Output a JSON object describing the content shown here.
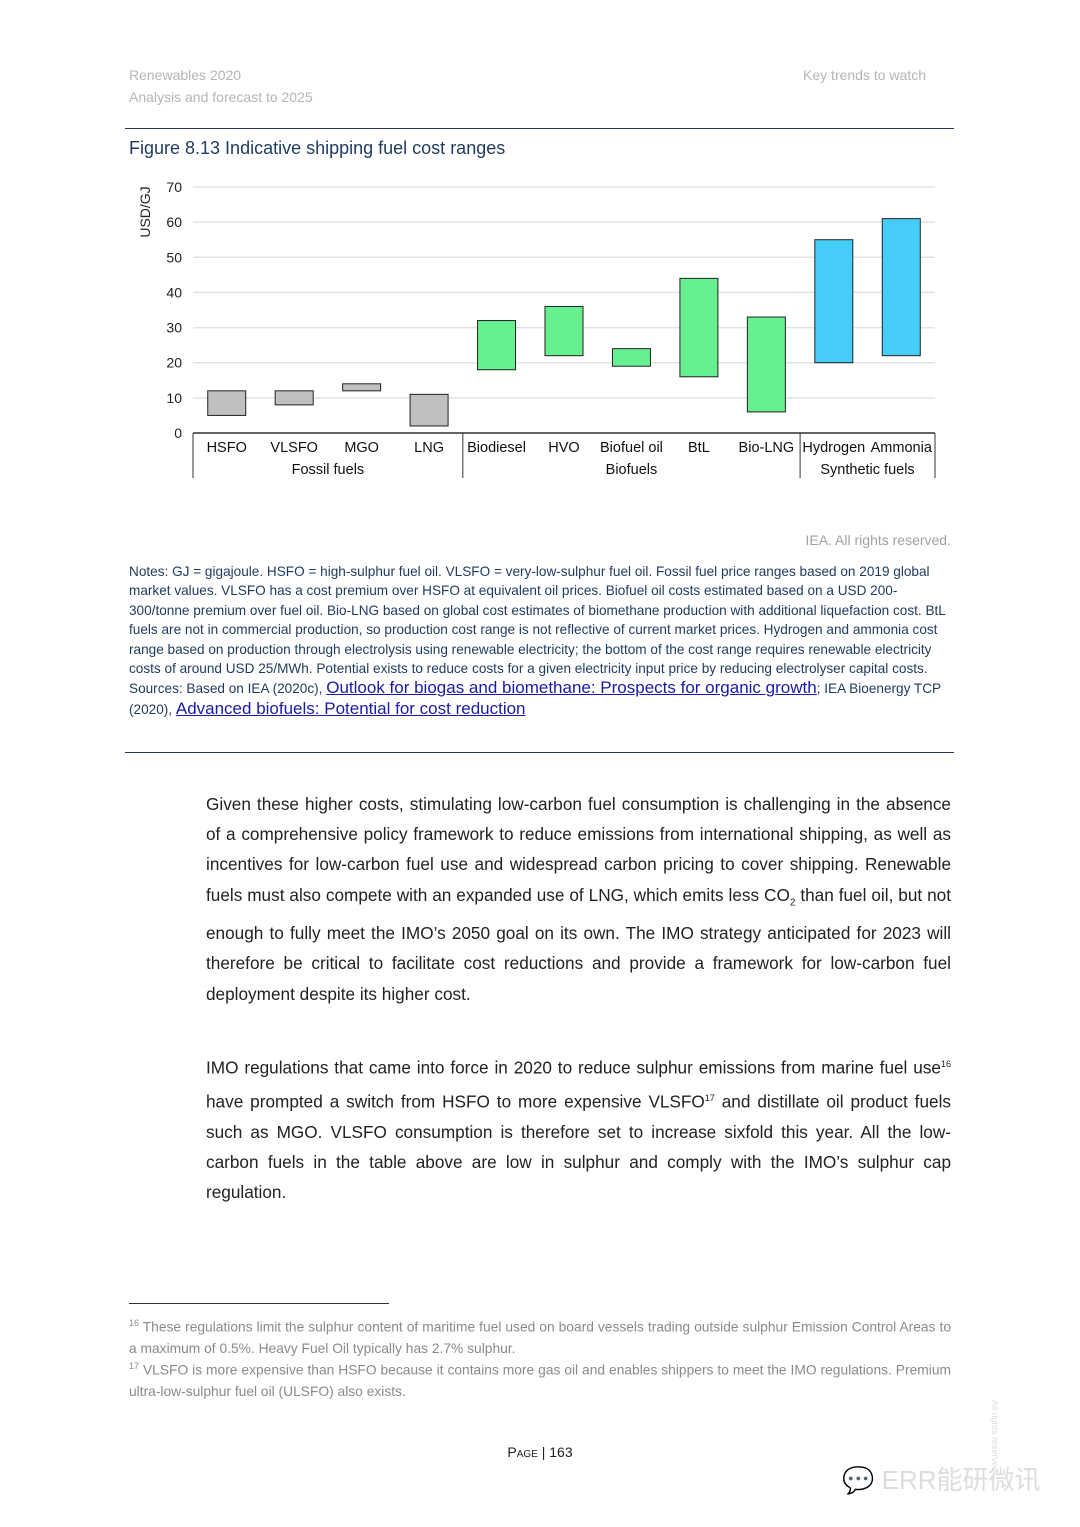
{
  "header": {
    "left_line1": "Renewables 2020",
    "left_line2": "Analysis and forecast to 2025",
    "right": "Key trends to watch"
  },
  "figure": {
    "title": "Figure 8.13  Indicative shipping fuel cost ranges",
    "rights": "IEA. All rights reserved.",
    "notes": "Notes: GJ = gigajoule. HSFO = high-sulphur fuel oil. VLSFO = very-low-sulphur fuel oil. Fossil fuel price ranges based on 2019 global market values. VLSFO has a cost premium over HSFO at equivalent oil prices. Biofuel oil costs estimated based on a USD 200-300/tonne premium over fuel oil. Bio-LNG based on global cost estimates of biomethane production with additional liquefaction cost. BtL fuels are not in commercial production, so production cost range is not reflective of current market prices. Hydrogen and ammonia cost range based on production through electrolysis using renewable electricity; the bottom of the cost range requires renewable electricity costs of around USD 25/MWh. Potential exists to reduce costs for a given electricity input price by reducing electrolyser capital costs.",
    "sources_prefix": "Sources: Based on IEA (2020c), ",
    "source_link1": "Outlook for biogas and biomethane: Prospects for organic growth",
    "sources_mid": "; IEA Bioenergy TCP (2020), ",
    "source_link2": "Advanced biofuels: Potential for cost reduction"
  },
  "chart_data": {
    "type": "floating-bar",
    "ylabel": "USD/GJ",
    "ylim": [
      0,
      70
    ],
    "yticks": [
      0,
      10,
      20,
      30,
      40,
      50,
      60,
      70
    ],
    "grid": true,
    "categories": [
      "HSFO",
      "VLSFO",
      "MGO",
      "LNG",
      "Biodiesel",
      "HVO",
      "Biofuel oil",
      "BtL",
      "Bio-LNG",
      "Hydrogen",
      "Ammonia"
    ],
    "groups": [
      {
        "name": "Fossil fuels",
        "count": 4,
        "color": "#c0c0c0"
      },
      {
        "name": "Biofuels",
        "count": 5,
        "color": "#66f08f"
      },
      {
        "name": "Synthetic fuels",
        "count": 2,
        "color": "#45cdf8"
      }
    ],
    "low": [
      5,
      8,
      12,
      2,
      18,
      22,
      19,
      16,
      6,
      20,
      22
    ],
    "high": [
      12,
      12,
      14,
      11,
      32,
      36,
      24,
      44,
      33,
      55,
      61
    ]
  },
  "body": {
    "p1a": "Given these higher costs, stimulating low-carbon fuel consumption is challenging in the absence of a comprehensive policy framework to reduce emissions from international shipping, as well as incentives for low-carbon fuel use and widespread carbon pricing to cover shipping. Renewable fuels must also compete with an expanded use of LNG, which emits less CO",
    "p1sub": "2",
    "p1b": " than fuel oil, but not enough to fully meet the IMO’s 2050 goal on its own. The IMO strategy anticipated for 2023 will therefore be critical to facilitate cost reductions and provide a framework for low-carbon fuel deployment despite its higher cost.",
    "p2a": "IMO regulations that came into force in 2020 to reduce sulphur emissions from marine fuel use",
    "p2sup1": "16",
    "p2b": " have prompted a switch from HSFO to more expensive VLSFO",
    "p2sup2": "17",
    "p2c": " and distillate oil product fuels such as MGO. VLSFO consumption is therefore set to increase sixfold this year. All the low-carbon fuels in the table above are low in sulphur and comply with the IMO’s sulphur cap regulation."
  },
  "footnotes": [
    {
      "num": "16",
      "text": " These regulations limit the sulphur content of maritime fuel used on board vessels trading outside sulphur Emission Control Areas to a maximum of 0.5%. Heavy Fuel Oil typically has 2.7% sulphur."
    },
    {
      "num": "17",
      "text": " VLSFO is more expensive than HSFO because it contains more gas oil and enables shippers to meet the IMO regulations. Premium ultra-low-sulphur fuel oil (ULSFO) also exists."
    }
  ],
  "page": {
    "label": "Page",
    "number": "163"
  },
  "watermark": {
    "text": "ERR能研微讯",
    "side": "All rights reserved."
  }
}
